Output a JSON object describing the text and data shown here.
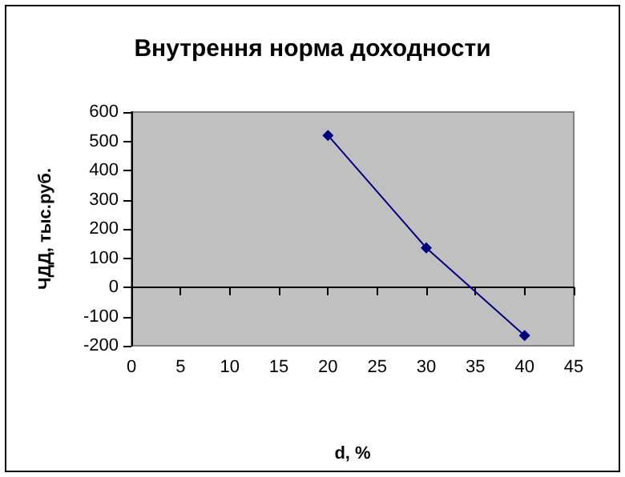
{
  "chart_data": {
    "type": "line",
    "title": "Внутрення норма доходности",
    "xlabel": "d, %",
    "ylabel": "ЧДД, тыс.руб.",
    "x": [
      20,
      30,
      40
    ],
    "series": [
      {
        "color": "#000080",
        "values": [
          520,
          135,
          -165
        ]
      }
    ],
    "xlim": [
      0,
      45
    ],
    "xticks": [
      0,
      5,
      10,
      15,
      20,
      25,
      30,
      35,
      40,
      45
    ],
    "ylim": [
      -200,
      600
    ],
    "yticks": [
      -200,
      -100,
      0,
      100,
      200,
      300,
      400,
      500,
      600
    ],
    "marker": "diamond"
  }
}
